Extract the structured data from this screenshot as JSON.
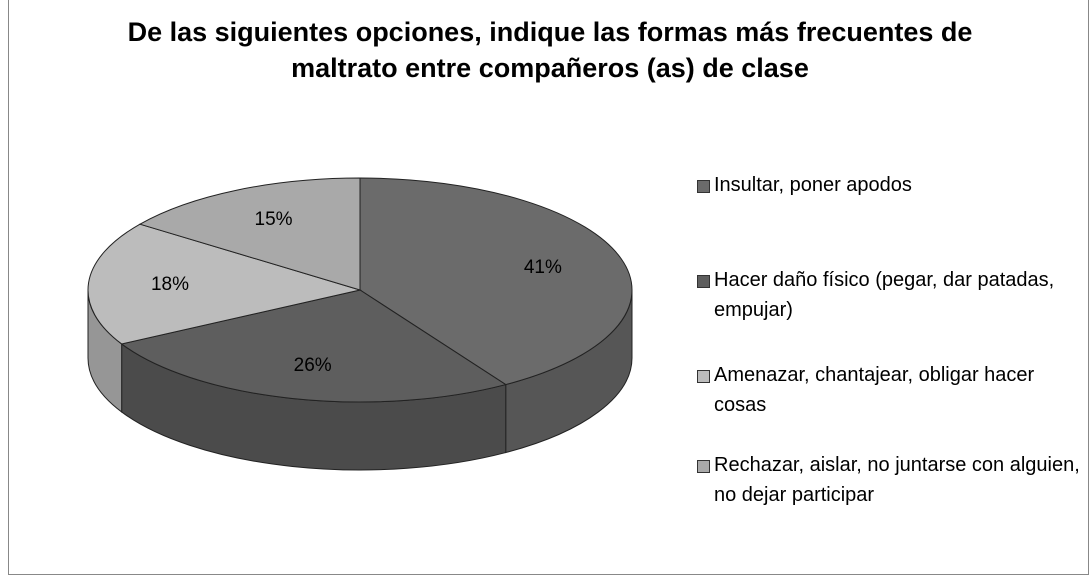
{
  "chart_data": {
    "type": "pie",
    "title": "De las siguientes opciones, indique las formas más frecuentes de maltrato entre compañeros (as) de clase",
    "categories": [
      "Insultar, poner apodos",
      "Hacer daño físico (pegar, dar patadas, empujar)",
      "Amenazar, chantajear, obligar hacer cosas",
      "Rechazar, aislar, no juntarse con alguien, no dejar participar"
    ],
    "values": [
      41,
      26,
      18,
      15
    ],
    "value_labels": [
      "41%",
      "26%",
      "18%",
      "15%"
    ],
    "colors": [
      "#6b6b6b",
      "#5e5e5e",
      "#bcbcbc",
      "#a9a9a9"
    ],
    "legend": "right"
  }
}
